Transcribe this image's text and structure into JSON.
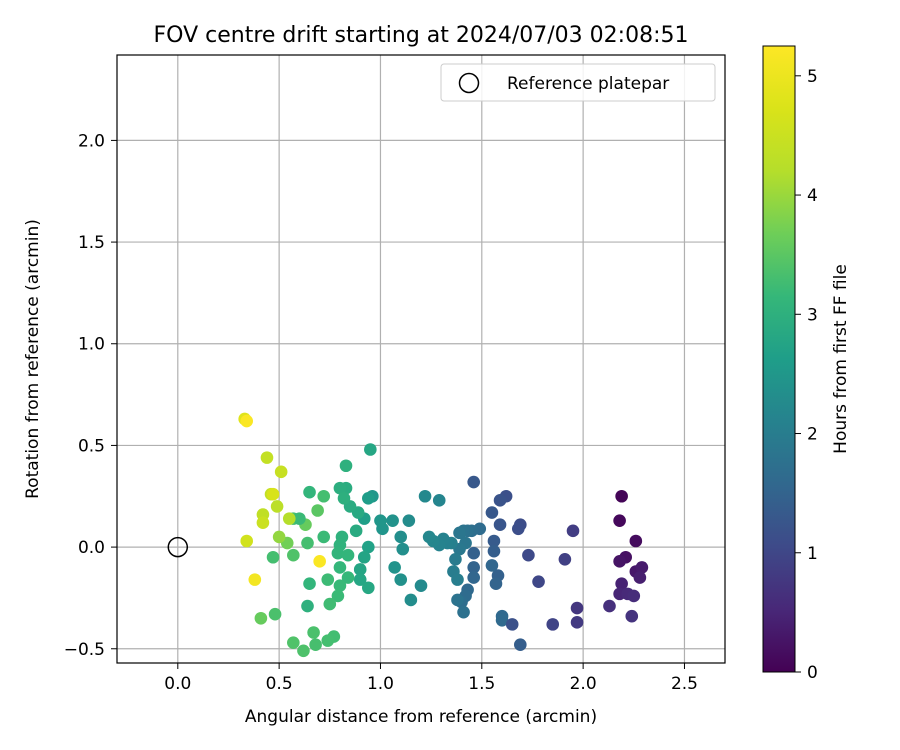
{
  "chart_data": {
    "type": "scatter",
    "title": "FOV centre drift starting at 2024/07/03 02:08:51",
    "xlabel": "Angular distance from reference (arcmin)",
    "ylabel": "Rotation from reference (arcmin)",
    "xlim": [
      -0.3,
      2.7
    ],
    "ylim": [
      -0.57,
      2.42
    ],
    "xticks": [
      0.0,
      0.5,
      1.0,
      1.5,
      2.0,
      2.5
    ],
    "xtick_labels": [
      "0.0",
      "0.5",
      "1.0",
      "1.5",
      "2.0",
      "2.5"
    ],
    "yticks": [
      -0.5,
      0.0,
      0.5,
      1.0,
      1.5,
      2.0
    ],
    "ytick_labels": [
      "−0.5",
      "0.0",
      "0.5",
      "1.0",
      "1.5",
      "2.0"
    ],
    "grid": true,
    "legend": {
      "position": "top-right",
      "entries": [
        "Reference platepar"
      ]
    },
    "reference_point": {
      "x": 0.0,
      "y": 0.0
    },
    "colorbar": {
      "label": "Hours from first FF file",
      "colormap": "viridis",
      "range": [
        0,
        5.25
      ],
      "ticks": [
        0,
        1,
        2,
        3,
        4,
        5
      ],
      "tick_labels": [
        "0",
        "1",
        "2",
        "3",
        "4",
        "5"
      ]
    },
    "points": [
      {
        "x": 2.19,
        "y": 0.25,
        "c": 0.05
      },
      {
        "x": 2.18,
        "y": 0.13,
        "c": 0.1
      },
      {
        "x": 2.26,
        "y": 0.03,
        "c": 0.15
      },
      {
        "x": 2.21,
        "y": -0.05,
        "c": 0.2
      },
      {
        "x": 2.18,
        "y": -0.07,
        "c": 0.25
      },
      {
        "x": 2.26,
        "y": -0.12,
        "c": 0.3
      },
      {
        "x": 2.29,
        "y": -0.1,
        "c": 0.35
      },
      {
        "x": 2.28,
        "y": -0.15,
        "c": 0.4
      },
      {
        "x": 2.19,
        "y": -0.18,
        "c": 0.45
      },
      {
        "x": 2.18,
        "y": -0.23,
        "c": 0.5
      },
      {
        "x": 2.22,
        "y": -0.23,
        "c": 0.55
      },
      {
        "x": 2.25,
        "y": -0.24,
        "c": 0.6
      },
      {
        "x": 2.13,
        "y": -0.29,
        "c": 0.65
      },
      {
        "x": 2.24,
        "y": -0.34,
        "c": 0.7
      },
      {
        "x": 1.97,
        "y": -0.3,
        "c": 0.75
      },
      {
        "x": 1.97,
        "y": -0.37,
        "c": 0.8
      },
      {
        "x": 1.95,
        "y": 0.08,
        "c": 0.85
      },
      {
        "x": 1.91,
        "y": -0.06,
        "c": 0.9
      },
      {
        "x": 1.85,
        "y": -0.38,
        "c": 0.95
      },
      {
        "x": 1.78,
        "y": -0.17,
        "c": 1.0
      },
      {
        "x": 1.73,
        "y": -0.04,
        "c": 1.05
      },
      {
        "x": 1.69,
        "y": 0.11,
        "c": 1.1
      },
      {
        "x": 1.68,
        "y": 0.09,
        "c": 1.12
      },
      {
        "x": 1.62,
        "y": 0.25,
        "c": 1.15
      },
      {
        "x": 1.59,
        "y": 0.23,
        "c": 1.2
      },
      {
        "x": 1.59,
        "y": 0.11,
        "c": 1.25
      },
      {
        "x": 1.55,
        "y": 0.17,
        "c": 1.3
      },
      {
        "x": 1.56,
        "y": 0.03,
        "c": 1.35
      },
      {
        "x": 1.56,
        "y": -0.02,
        "c": 1.4
      },
      {
        "x": 1.58,
        "y": -0.14,
        "c": 1.45
      },
      {
        "x": 1.57,
        "y": -0.18,
        "c": 1.5
      },
      {
        "x": 1.55,
        "y": -0.09,
        "c": 1.55
      },
      {
        "x": 1.6,
        "y": -0.34,
        "c": 1.6
      },
      {
        "x": 1.6,
        "y": -0.36,
        "c": 1.62
      },
      {
        "x": 1.65,
        "y": -0.38,
        "c": 1.18
      },
      {
        "x": 1.69,
        "y": -0.48,
        "c": 1.4
      },
      {
        "x": 1.46,
        "y": 0.32,
        "c": 1.3
      },
      {
        "x": 1.49,
        "y": 0.09,
        "c": 1.65
      },
      {
        "x": 1.45,
        "y": 0.08,
        "c": 1.7
      },
      {
        "x": 1.43,
        "y": 0.08,
        "c": 1.75
      },
      {
        "x": 1.41,
        "y": 0.08,
        "c": 1.8
      },
      {
        "x": 1.39,
        "y": 0.07,
        "c": 1.85
      },
      {
        "x": 1.46,
        "y": -0.03,
        "c": 1.45
      },
      {
        "x": 1.46,
        "y": -0.1,
        "c": 1.5
      },
      {
        "x": 1.46,
        "y": -0.15,
        "c": 1.55
      },
      {
        "x": 1.43,
        "y": -0.21,
        "c": 1.6
      },
      {
        "x": 1.42,
        "y": -0.24,
        "c": 1.65
      },
      {
        "x": 1.4,
        "y": -0.27,
        "c": 1.7
      },
      {
        "x": 1.41,
        "y": -0.32,
        "c": 1.75
      },
      {
        "x": 1.38,
        "y": -0.26,
        "c": 1.8
      },
      {
        "x": 1.42,
        "y": 0.02,
        "c": 1.85
      },
      {
        "x": 1.39,
        "y": -0.01,
        "c": 1.9
      },
      {
        "x": 1.37,
        "y": -0.06,
        "c": 1.95
      },
      {
        "x": 1.36,
        "y": -0.12,
        "c": 2.0
      },
      {
        "x": 1.38,
        "y": -0.16,
        "c": 2.02
      },
      {
        "x": 1.35,
        "y": 0.02,
        "c": 2.05
      },
      {
        "x": 1.33,
        "y": 0.02,
        "c": 2.08
      },
      {
        "x": 1.31,
        "y": 0.04,
        "c": 2.1
      },
      {
        "x": 1.29,
        "y": 0.01,
        "c": 2.12
      },
      {
        "x": 1.29,
        "y": 0.23,
        "c": 2.15
      },
      {
        "x": 1.26,
        "y": 0.03,
        "c": 2.18
      },
      {
        "x": 1.24,
        "y": 0.05,
        "c": 2.2
      },
      {
        "x": 1.22,
        "y": 0.25,
        "c": 2.22
      },
      {
        "x": 1.2,
        "y": -0.19,
        "c": 2.25
      },
      {
        "x": 1.14,
        "y": 0.13,
        "c": 2.28
      },
      {
        "x": 1.15,
        "y": -0.26,
        "c": 2.3
      },
      {
        "x": 1.1,
        "y": 0.05,
        "c": 2.32
      },
      {
        "x": 1.11,
        "y": -0.01,
        "c": 2.35
      },
      {
        "x": 1.1,
        "y": -0.16,
        "c": 2.38
      },
      {
        "x": 1.06,
        "y": 0.13,
        "c": 2.4
      },
      {
        "x": 1.07,
        "y": -0.1,
        "c": 2.42
      },
      {
        "x": 1.01,
        "y": 0.09,
        "c": 2.45
      },
      {
        "x": 1.0,
        "y": 0.13,
        "c": 2.48
      },
      {
        "x": 0.96,
        "y": 0.25,
        "c": 2.5
      },
      {
        "x": 0.95,
        "y": 0.48,
        "c": 2.8
      },
      {
        "x": 0.94,
        "y": 0.24,
        "c": 2.6
      },
      {
        "x": 0.92,
        "y": 0.14,
        "c": 2.65
      },
      {
        "x": 0.94,
        "y": 0.0,
        "c": 2.7
      },
      {
        "x": 0.92,
        "y": -0.05,
        "c": 2.75
      },
      {
        "x": 0.9,
        "y": -0.11,
        "c": 2.78
      },
      {
        "x": 0.9,
        "y": -0.16,
        "c": 2.8
      },
      {
        "x": 0.94,
        "y": -0.2,
        "c": 2.82
      },
      {
        "x": 0.89,
        "y": 0.17,
        "c": 2.85
      },
      {
        "x": 0.88,
        "y": 0.08,
        "c": 2.88
      },
      {
        "x": 0.85,
        "y": 0.2,
        "c": 2.9
      },
      {
        "x": 0.83,
        "y": 0.29,
        "c": 2.92
      },
      {
        "x": 0.8,
        "y": 0.29,
        "c": 2.95
      },
      {
        "x": 0.82,
        "y": 0.24,
        "c": 2.98
      },
      {
        "x": 0.83,
        "y": 0.4,
        "c": 3.0
      },
      {
        "x": 0.81,
        "y": 0.05,
        "c": 3.02
      },
      {
        "x": 0.8,
        "y": 0.01,
        "c": 3.05
      },
      {
        "x": 0.79,
        "y": -0.03,
        "c": 3.08
      },
      {
        "x": 0.84,
        "y": -0.04,
        "c": 3.1
      },
      {
        "x": 0.8,
        "y": -0.1,
        "c": 3.12
      },
      {
        "x": 0.84,
        "y": -0.15,
        "c": 3.15
      },
      {
        "x": 0.8,
        "y": -0.19,
        "c": 3.18
      },
      {
        "x": 0.79,
        "y": -0.24,
        "c": 3.2
      },
      {
        "x": 0.74,
        "y": -0.16,
        "c": 3.22
      },
      {
        "x": 0.75,
        "y": -0.28,
        "c": 3.25
      },
      {
        "x": 0.77,
        "y": -0.44,
        "c": 3.28
      },
      {
        "x": 0.74,
        "y": -0.46,
        "c": 3.3
      },
      {
        "x": 0.68,
        "y": -0.48,
        "c": 3.32
      },
      {
        "x": 0.67,
        "y": -0.42,
        "c": 3.35
      },
      {
        "x": 0.62,
        "y": -0.51,
        "c": 3.38
      },
      {
        "x": 0.57,
        "y": -0.47,
        "c": 3.4
      },
      {
        "x": 0.72,
        "y": 0.05,
        "c": 3.2
      },
      {
        "x": 0.72,
        "y": 0.25,
        "c": 3.3
      },
      {
        "x": 0.65,
        "y": 0.27,
        "c": 3.1
      },
      {
        "x": 0.69,
        "y": 0.18,
        "c": 3.5
      },
      {
        "x": 0.63,
        "y": 0.11,
        "c": 3.6
      },
      {
        "x": 0.64,
        "y": 0.02,
        "c": 3.3
      },
      {
        "x": 0.65,
        "y": -0.18,
        "c": 3.1
      },
      {
        "x": 0.64,
        "y": -0.29,
        "c": 3.0
      },
      {
        "x": 0.57,
        "y": -0.04,
        "c": 3.4
      },
      {
        "x": 0.57,
        "y": 0.14,
        "c": 3.3
      },
      {
        "x": 0.6,
        "y": 0.14,
        "c": 3.2
      },
      {
        "x": 0.47,
        "y": -0.05,
        "c": 3.3
      },
      {
        "x": 0.48,
        "y": -0.33,
        "c": 3.35
      },
      {
        "x": 0.41,
        "y": -0.35,
        "c": 3.6
      },
      {
        "x": 0.54,
        "y": 0.02,
        "c": 3.7
      },
      {
        "x": 0.5,
        "y": 0.05,
        "c": 3.95
      },
      {
        "x": 0.55,
        "y": 0.14,
        "c": 4.2
      },
      {
        "x": 0.49,
        "y": 0.2,
        "c": 4.3
      },
      {
        "x": 0.46,
        "y": 0.26,
        "c": 4.4
      },
      {
        "x": 0.42,
        "y": 0.16,
        "c": 4.35
      },
      {
        "x": 0.42,
        "y": 0.12,
        "c": 4.5
      },
      {
        "x": 0.51,
        "y": 0.37,
        "c": 4.45
      },
      {
        "x": 0.44,
        "y": 0.44,
        "c": 4.4
      },
      {
        "x": 0.34,
        "y": 0.03,
        "c": 4.6
      },
      {
        "x": 0.47,
        "y": 0.26,
        "c": 4.7
      },
      {
        "x": 0.33,
        "y": 0.63,
        "c": 4.8
      },
      {
        "x": 0.34,
        "y": 0.62,
        "c": 5.2
      },
      {
        "x": 0.38,
        "y": -0.16,
        "c": 5.1
      },
      {
        "x": 0.7,
        "y": -0.07,
        "c": 5.2
      }
    ]
  }
}
